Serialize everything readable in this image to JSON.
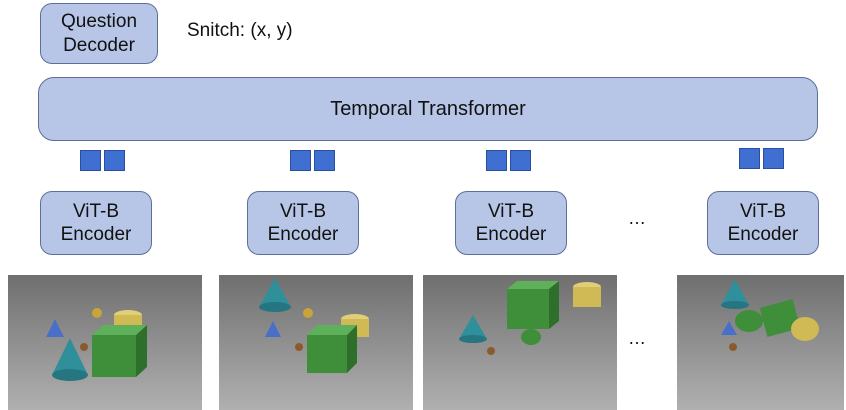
{
  "question_decoder": {
    "label_line1": "Question",
    "label_line2": "Decoder"
  },
  "snitch_label": "Snitch: (x, y)",
  "temporal_transformer": {
    "label": "Temporal Transformer"
  },
  "encoders": [
    {
      "line1": "ViT-B",
      "line2": "Encoder"
    },
    {
      "line1": "ViT-B",
      "line2": "Encoder"
    },
    {
      "line1": "ViT-B",
      "line2": "Encoder"
    },
    {
      "line1": "ViT-B",
      "line2": "Encoder"
    }
  ],
  "ellipsis": "…",
  "colors": {
    "box_fill": "#b7c6e7",
    "box_border": "#5b6f99",
    "token": "#3f6fd0",
    "scene_floor": "#8a8a8a",
    "cube": "#3e8e3a",
    "cone_teal": "#2f8f9a",
    "cone_blue": "#4a6fc9",
    "cylinder_yellow": "#d8c35a"
  },
  "frames": [
    {
      "name": "frame-1",
      "icon": "scene-render"
    },
    {
      "name": "frame-2",
      "icon": "scene-render"
    },
    {
      "name": "frame-3",
      "icon": "scene-render"
    },
    {
      "name": "frame-4",
      "icon": "scene-render"
    }
  ]
}
